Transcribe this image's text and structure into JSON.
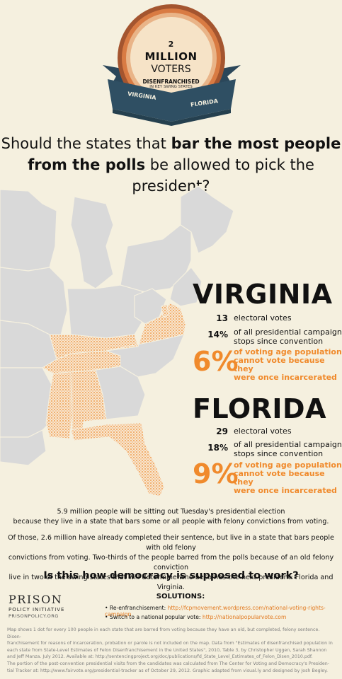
{
  "badge": {
    "number": "2",
    "big": "MILLION",
    "voters": "VOTERS",
    "disenfranchised": "DISENFRANCHISED",
    "sub": "IN KEY SWING STATES",
    "ribbon_left": "VIRGINIA",
    "ribbon_right": "FLORIDA"
  },
  "headline": {
    "line1_pre": "Should the states that ",
    "line1_bold": "bar the most people",
    "line2_bold": "from the polls",
    "line2_post": " be allowed to pick the president?"
  },
  "virginia": {
    "name": "VIRGINIA",
    "ev_num": "13",
    "ev_label": "electoral votes",
    "stops_num": "14%",
    "stops_label_1": "of all presidential campaign",
    "stops_label_2": "stops since convention",
    "pct": "6%",
    "pct_label_1": "of voting age population",
    "pct_label_2": "cannot vote because they",
    "pct_label_3": "were once incarcerated"
  },
  "florida": {
    "name": "FLORIDA",
    "ev_num": "29",
    "ev_label": "electoral votes",
    "stops_num": "18%",
    "stops_label_1": "of all presidential campaign",
    "stops_label_2": "stops since convention",
    "pct": "9%",
    "pct_label_1": "of voting age population",
    "pct_label_2": "cannot vote because they",
    "pct_label_3": "were once incarcerated"
  },
  "body": {
    "p1_line1": "5.9 million people will be sitting out Tuesday's presidential election",
    "p1_line2": "because they live in a state that bars some or all people with felony convictions from voting.",
    "p2_line1": "Of those, 2.6 million have already completed their sentence, but live in a state that bars people with old felony",
    "p2_line2": "convictions from voting. Two-thirds of the people barred from the polls because of an old felony conviction",
    "p2_line3": "live in two of the swing states that will determine who becomes the next president: Florida and Virginia.",
    "question": "Is this how democracy is supposed to work?"
  },
  "logo": {
    "line1": "PRISON",
    "line2": "POLICY INITIATIVE",
    "line3": "PRISONPOLICY.ORG"
  },
  "solutions": {
    "title": "SOLUTIONS:",
    "item1_label": "Re-enfranchisement: ",
    "item1_url": "http://fcpmovement.wordpress.com/national-voting-rights-campaign",
    "item2_label": "Switch to a national popular vote: ",
    "item2_url": "http://nationalpopularvote.com"
  },
  "footnote": {
    "l1": "Map shows 1 dot for every 100 people in each state that are barred from voting because they have an old, but completed, felony sentence. Disen-",
    "l2": "franchisement for reasons of incarceration, probation or parole is not included on the map. Data from \"Estimates of disenfranchised population in",
    "l3": "each state from State-Level Estimates of Felon Disenfranchisement in the United States\", 2010, Table 3, by Christopher Uggen, Sarah Shannon",
    "l4": "and Jeff Manza. July 2012. Available at: http://sentencingproject.org/doc/publications/fd_State_Level_Estimates_of_Felon_Disen_2010.pdf.",
    "l5": "The portion of the post-convention presidential visits from the candidates was calculated from The Center for Voting and Democracy's Presiden-",
    "l6": "tial Tracker at: http://www.fairvote.org/presidential-tracker as of October 29, 2012. Graphic adapted from visual.ly and designed by Josh Begley."
  },
  "colors": {
    "background": "#f5f0df",
    "accent_orange": "#f08a2c",
    "ribbon": "#2f4f63",
    "state_gray": "#d9d9d9"
  }
}
